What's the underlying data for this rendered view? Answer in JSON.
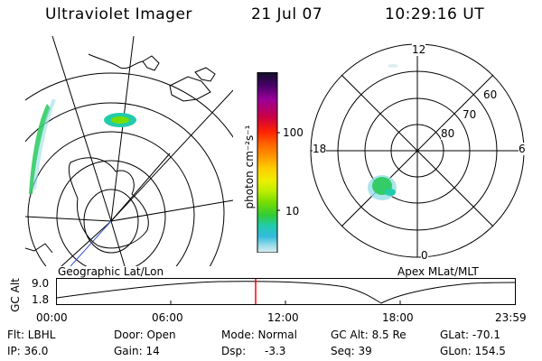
{
  "header": {
    "instrument": "Ultraviolet Imager",
    "date": "21 Jul 07",
    "time": "10:29:16 UT"
  },
  "left_panel": {
    "caption": "Geographic Lat/Lon"
  },
  "right_panel": {
    "caption": "Apex MLat/MLT",
    "mlt_labels": {
      "top": "12",
      "left": "18",
      "right": "6",
      "bottom": "0"
    },
    "lat_labels": [
      "60",
      "70",
      "80"
    ]
  },
  "colorbar": {
    "unit_label": "photon cm⁻²s⁻¹",
    "ticks": [
      "100",
      "10"
    ],
    "colors": [
      "#111122",
      "#440066",
      "#990099",
      "#cc0044",
      "#ff2200",
      "#ff6600",
      "#ff9900",
      "#ffcc00",
      "#eeee00",
      "#bbee00",
      "#77dd00",
      "#33cc33",
      "#22ccaa",
      "#33bbdd",
      "#99dde8",
      "#ddeef0"
    ]
  },
  "altitude_plot": {
    "ylabel": "GC Alt",
    "y_ticks": [
      "9.0",
      "1.8"
    ],
    "x_ticks": [
      "00:00",
      "06:00",
      "12:00",
      "18:00",
      "23:59"
    ],
    "accent_color": "#ff0000"
  },
  "info": {
    "flt": "Flt: LBHL",
    "ip": "IP: 36.0",
    "door": "Door: Open",
    "gain": "Gain: 14",
    "mode": "Mode: Normal",
    "dsp": "Dsp:",
    "dsp_value": "-3.3",
    "gc_alt": "GC Alt: 8.5 Re",
    "seq": "Seq: 39",
    "glat": "GLat: -70.1",
    "glon": "GLon: 154.5"
  }
}
